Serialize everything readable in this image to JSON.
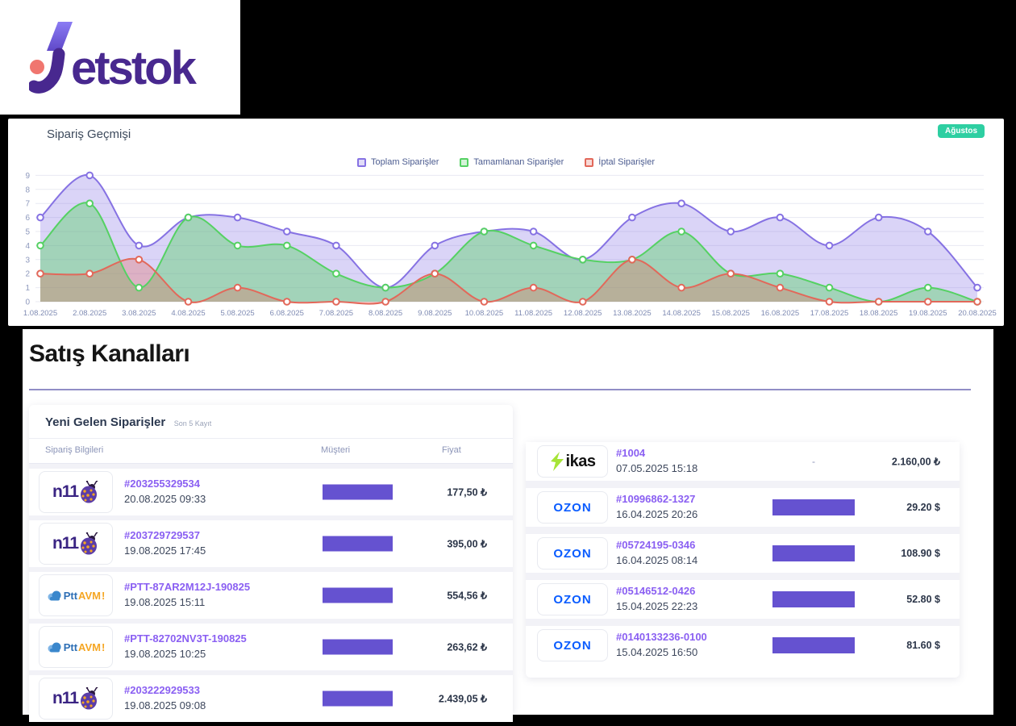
{
  "brand": {
    "name": "jetstok",
    "wordmark_rest": "etstok",
    "dot_color": "#f0766f",
    "purple": "#48288f",
    "flash_purple": "#7a64e4"
  },
  "chart_panel": {
    "title": "Sipariş Geçmişi",
    "badge": "Ağustos",
    "badge_color": "#2ecfa2",
    "legend": [
      {
        "label": "Toplam Siparişler",
        "color": "#8672e3"
      },
      {
        "label": "Tamamlanan Siparişler",
        "color": "#55d163"
      },
      {
        "label": "İptal Siparişler",
        "color": "#e2685a"
      }
    ]
  },
  "chart_data": {
    "type": "area",
    "title": "Sipariş Geçmişi",
    "xlabel": "",
    "ylabel": "",
    "ylim": [
      0,
      9
    ],
    "yticks": [
      0,
      1,
      2,
      3,
      4,
      5,
      6,
      7,
      8,
      9
    ],
    "grid": true,
    "legend_position": "top",
    "categories": [
      "1.08.2025",
      "2.08.2025",
      "3.08.2025",
      "4.08.2025",
      "5.08.2025",
      "6.08.2025",
      "7.08.2025",
      "8.08.2025",
      "9.08.2025",
      "10.08.2025",
      "11.08.2025",
      "12.08.2025",
      "13.08.2025",
      "14.08.2025",
      "15.08.2025",
      "16.08.2025",
      "17.08.2025",
      "18.08.2025",
      "19.08.2025",
      "20.08.2025"
    ],
    "series": [
      {
        "name": "Toplam Siparişler",
        "color": "#8672e3",
        "fill_opacity": 0.3,
        "values": [
          6,
          9,
          4,
          6,
          6,
          5,
          4,
          1,
          4,
          5,
          5,
          3,
          6,
          7,
          5,
          6,
          4,
          6,
          5,
          1
        ]
      },
      {
        "name": "Tamamlanan Siparişler",
        "color": "#55d163",
        "fill_opacity": 0.42,
        "values": [
          4,
          7,
          1,
          6,
          4,
          4,
          2,
          1,
          2,
          5,
          4,
          3,
          3,
          5,
          2,
          2,
          1,
          0,
          1,
          0
        ]
      },
      {
        "name": "İptal Siparişler",
        "color": "#e2685a",
        "fill_opacity": 0.32,
        "values": [
          2,
          2,
          3,
          0,
          1,
          0,
          0,
          0,
          2,
          0,
          1,
          0,
          3,
          1,
          2,
          1,
          0,
          0,
          0,
          0
        ]
      }
    ]
  },
  "sales_channels": {
    "heading": "Satış Kanalları",
    "accent_bar_color": "#6552d0",
    "left_table": {
      "title": "Yeni Gelen Siparişler",
      "subtitle": "Son 5 Kayıt",
      "columns": [
        "Sipariş Bilgileri",
        "Müşteri",
        "Fiyat"
      ],
      "rows": [
        {
          "channel": "n11",
          "order_no": "#203255329534",
          "date": "20.08.2025 09:33",
          "customer": "redacted",
          "price": "177,50 ₺"
        },
        {
          "channel": "n11",
          "order_no": "#203729729537",
          "date": "19.08.2025 17:45",
          "customer": "redacted",
          "price": "395,00 ₺"
        },
        {
          "channel": "pttavm",
          "order_no": "#PTT-87AR2M12J-190825",
          "date": "19.08.2025 15:11",
          "customer": "redacted",
          "price": "554,56 ₺"
        },
        {
          "channel": "pttavm",
          "order_no": "#PTT-82702NV3T-190825",
          "date": "19.08.2025 10:25",
          "customer": "redacted",
          "price": "263,62 ₺"
        },
        {
          "channel": "n11",
          "order_no": "#203222929533",
          "date": "19.08.2025 09:08",
          "customer": "redacted",
          "price": "2.439,05 ₺"
        }
      ]
    },
    "right_table": {
      "rows": [
        {
          "channel": "ikas",
          "order_no": "#1004",
          "date": "07.05.2025 15:18",
          "customer": "-",
          "price": "2.160,00 ₺"
        },
        {
          "channel": "ozon",
          "order_no": "#10996862-1327",
          "date": "16.04.2025 20:26",
          "customer": "redacted",
          "price": "29.20 $"
        },
        {
          "channel": "ozon",
          "order_no": "#05724195-0346",
          "date": "16.04.2025 08:14",
          "customer": "redacted",
          "price": "108.90 $"
        },
        {
          "channel": "ozon",
          "order_no": "#05146512-0426",
          "date": "15.04.2025 22:23",
          "customer": "redacted",
          "price": "52.80 $"
        },
        {
          "channel": "ozon",
          "order_no": "#0140133236-0100",
          "date": "15.04.2025 16:50",
          "customer": "redacted",
          "price": "81.60 $"
        }
      ]
    }
  }
}
